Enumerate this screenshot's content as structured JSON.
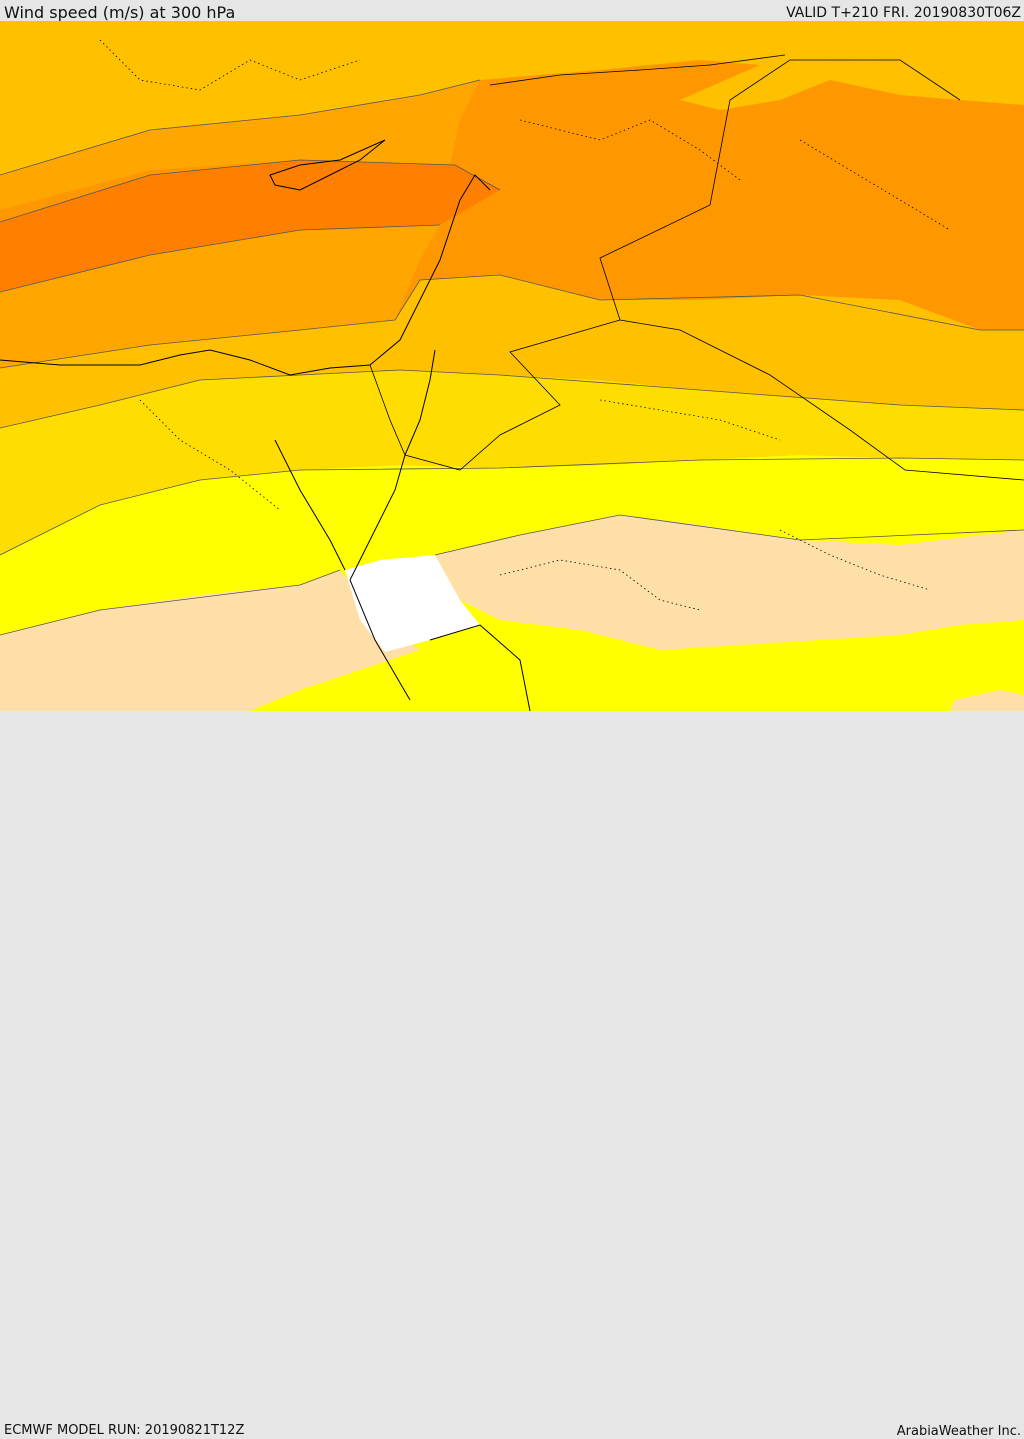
{
  "header": {
    "title": "Wind speed (m/s) at 300 hPa",
    "valid_time": "VALID T+210 FRI. 20190830T06Z"
  },
  "footer": {
    "model_run": "ECMWF MODEL RUN: 20190821T12Z",
    "credit": "ArabiaWeather Inc."
  },
  "map": {
    "variable": "wind speed",
    "units": "m/s",
    "pressure_level_hpa": 300,
    "bands_north_to_south": [
      "orange-dark",
      "orange",
      "orange-light",
      "yellow-orange",
      "gold",
      "yellow",
      "peach",
      "white"
    ],
    "colors": {
      "darkest": "#ff8000",
      "dark": "#ff9800",
      "mid": "#ffa600",
      "light": "#ffc000",
      "gold": "#ffdd00",
      "yellow": "#ffff00",
      "peach": "#ffdfa8",
      "white": "#ffffff",
      "coast": "#000000"
    }
  }
}
